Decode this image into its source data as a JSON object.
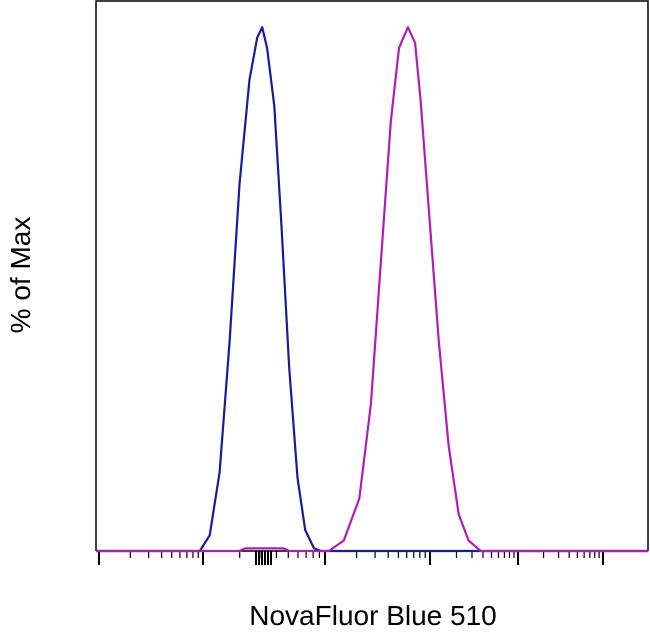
{
  "chart_data": {
    "type": "line",
    "xlabel": "NovaFluor Blue 510",
    "ylabel": "% of Max",
    "xlim": [
      0,
      100
    ],
    "ylim": [
      0,
      105
    ],
    "series": [
      {
        "color": "#1a1a9c",
        "x": [
          0,
          18.8,
          20.6,
          22.4,
          24.2,
          26.0,
          27.8,
          29.2,
          30.1,
          31.0,
          32.3,
          33.6,
          35.0,
          36.5,
          37.9,
          39.5,
          40.8,
          100
        ],
        "values": [
          0,
          0,
          3,
          15,
          40,
          70,
          90,
          98,
          100,
          96,
          85,
          62,
          35,
          14,
          4,
          0.5,
          0,
          0
        ]
      },
      {
        "color": "#b01cb8",
        "x": [
          0,
          26.0,
          27.0,
          34.0,
          35.0,
          42.2,
          44.9,
          47.7,
          49.8,
          51.6,
          53.4,
          54.9,
          56.5,
          57.8,
          58.8,
          60.3,
          62.1,
          63.9,
          65.7,
          67.5,
          69.7,
          100
        ],
        "values": [
          0,
          0,
          0.5,
          0.5,
          0,
          0,
          2,
          10,
          28,
          55,
          82,
          96,
          100,
          97,
          86,
          65,
          40,
          20,
          7,
          2,
          0,
          0
        ]
      }
    ]
  }
}
